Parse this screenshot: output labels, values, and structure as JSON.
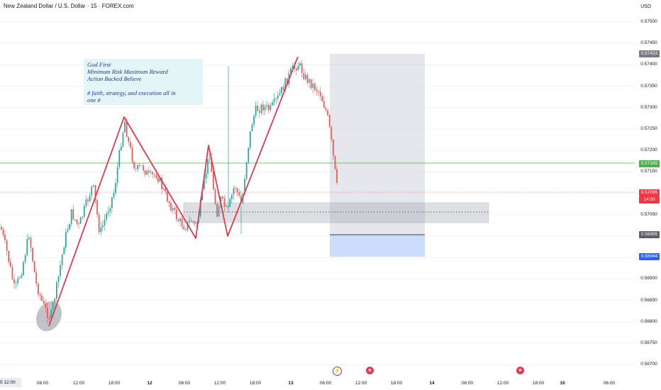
{
  "header": {
    "title": "New Zealand Dollar / U.S. Dollar · 15 · FOREX.com",
    "currency": "USD"
  },
  "note": {
    "lines": "God First\nMinimum Risk Maximum Reward\nAction Backed Believe\n\n# faith, strategy, and execution all in\none #"
  },
  "price_axis": {
    "ticks": [
      "0.57500",
      "0.57450",
      "0.57400",
      "0.57350",
      "0.57300",
      "0.57250",
      "0.57200",
      "0.57150",
      "0.57100",
      "0.57050",
      "0.57000",
      "0.56950",
      "0.56900",
      "0.56850",
      "0.56800",
      "0.56750",
      "0.56700"
    ],
    "labels": {
      "target": "0.57423",
      "green_line": "0.57165",
      "current_price": "0.57095",
      "countdown": "14:50",
      "entry": "0.56995",
      "stop": "0.56944"
    }
  },
  "time_axis": {
    "first": "5  12:00",
    "ticks": [
      "06:00",
      "12:00",
      "18:00",
      "12",
      "06:00",
      "12:00",
      "18:00",
      "13",
      "06:00",
      "12:00",
      "18:00",
      "14",
      "06:00",
      "12:00",
      "18:00",
      "16",
      "06:00"
    ]
  },
  "colors": {
    "up": "#26a69a",
    "down": "#ef5350",
    "pattern": "#e53950",
    "target_label": "#787b86",
    "green_label": "#4caf50",
    "price_label": "#f23645",
    "stop_label": "#2962ff"
  },
  "icons": [
    "lightning-icon",
    "us-flag-icon",
    "us-flag-icon"
  ]
}
